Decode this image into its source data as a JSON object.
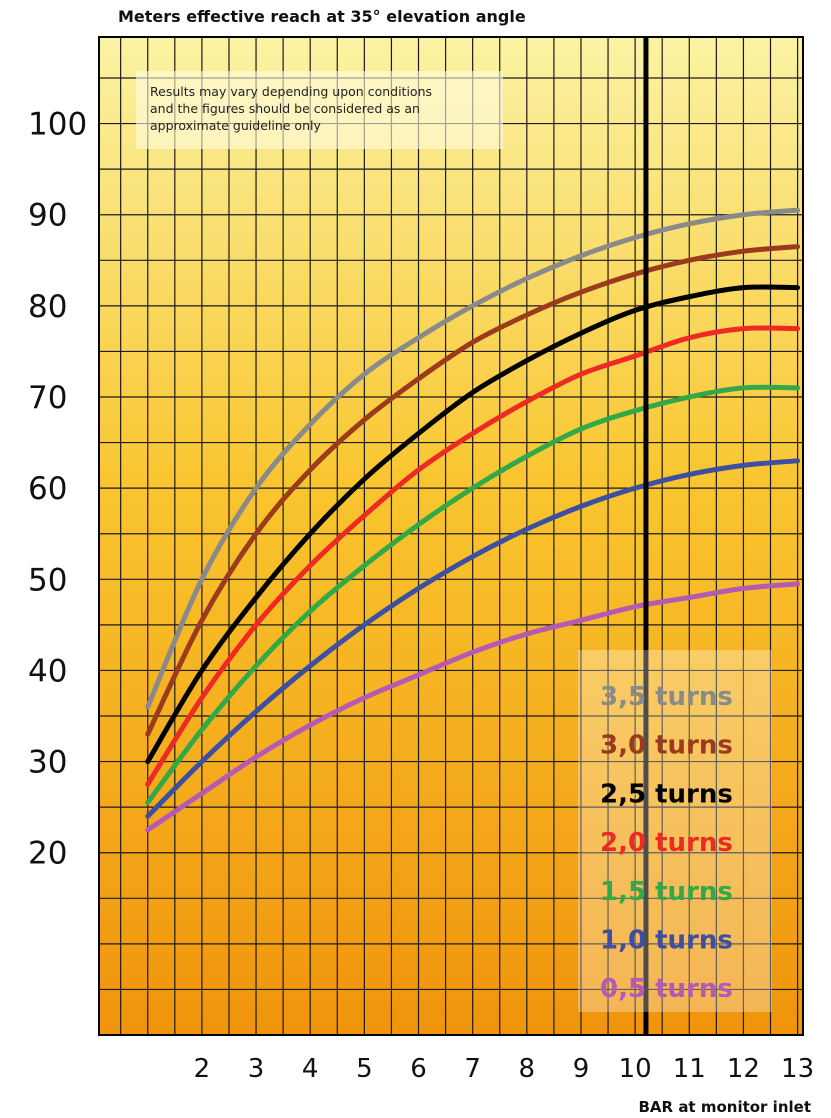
{
  "chart_data": {
    "type": "line",
    "title": "Meters effective reach at 35° elevation angle",
    "xlabel": "BAR at monitor inlet",
    "ylabel": "",
    "xlim": [
      0.1,
      13.1
    ],
    "ylim": [
      0,
      109.5
    ],
    "x_ticks": [
      "2",
      "3",
      "4",
      "5",
      "6",
      "7",
      "8",
      "9",
      "10",
      "11",
      "12",
      "13"
    ],
    "y_ticks": [
      "100",
      "90",
      "80",
      "70",
      "60",
      "50",
      "40",
      "30",
      "20"
    ],
    "grid": true,
    "legend_position": "bottom-right",
    "annotation": [
      "Results may vary depending upon conditions",
      "and the figures should be considered as an",
      "approximate guideline only"
    ],
    "vertical_marker_x": 10.2,
    "background": {
      "top": "#fbf3a5",
      "middle": "#f9c52e",
      "bottom": "#f0940b"
    },
    "series": [
      {
        "name": "3,5 turns",
        "color": "#8a8a8a",
        "x": [
          1,
          2,
          3,
          4,
          5,
          6,
          7,
          8,
          9,
          10,
          11,
          12,
          13
        ],
        "y": [
          36,
          50,
          60,
          67,
          72.5,
          76.5,
          80,
          83,
          85.5,
          87.5,
          89,
          90,
          90.5
        ]
      },
      {
        "name": "3,0 turns",
        "color": "#9b3a1c",
        "x": [
          1,
          2,
          3,
          4,
          5,
          6,
          7,
          8,
          9,
          10,
          11,
          12,
          13
        ],
        "y": [
          33,
          45.5,
          55,
          62,
          67.5,
          72,
          76,
          79,
          81.5,
          83.5,
          85,
          86,
          86.5
        ]
      },
      {
        "name": "2,5 turns",
        "color": "#000000",
        "x": [
          1,
          2,
          3,
          4,
          5,
          6,
          7,
          8,
          9,
          10,
          11,
          12,
          13
        ],
        "y": [
          30,
          40,
          48,
          55,
          61,
          66,
          70.5,
          74,
          77,
          79.5,
          81,
          82,
          82
        ]
      },
      {
        "name": "2,0 turns",
        "color": "#ee2a24",
        "x": [
          1,
          2,
          3,
          4,
          5,
          6,
          7,
          8,
          9,
          10,
          11,
          12,
          13
        ],
        "y": [
          27.5,
          37,
          45,
          51.5,
          57,
          62,
          66,
          69.5,
          72.5,
          74.5,
          76.5,
          77.5,
          77.5
        ]
      },
      {
        "name": "1,5 turns",
        "color": "#33a848",
        "x": [
          1,
          2,
          3,
          4,
          5,
          6,
          7,
          8,
          9,
          10,
          11,
          12,
          13
        ],
        "y": [
          25.5,
          33.5,
          40.5,
          46.5,
          51.5,
          56,
          60,
          63.5,
          66.5,
          68.5,
          70,
          71,
          71
        ]
      },
      {
        "name": "1,0 turns",
        "color": "#3d4fa3",
        "x": [
          1,
          2,
          3,
          4,
          5,
          6,
          7,
          8,
          9,
          10,
          11,
          12,
          13
        ],
        "y": [
          24,
          30,
          35.5,
          40.5,
          45,
          49,
          52.5,
          55.5,
          58,
          60,
          61.5,
          62.5,
          63
        ]
      },
      {
        "name": "0,5 turns",
        "color": "#b45ab4",
        "x": [
          1,
          2,
          3,
          4,
          5,
          6,
          7,
          8,
          9,
          10,
          11,
          12,
          13
        ],
        "y": [
          22.5,
          26.5,
          30.5,
          34,
          37,
          39.5,
          42,
          44,
          45.5,
          47,
          48,
          49,
          49.5
        ]
      }
    ]
  }
}
